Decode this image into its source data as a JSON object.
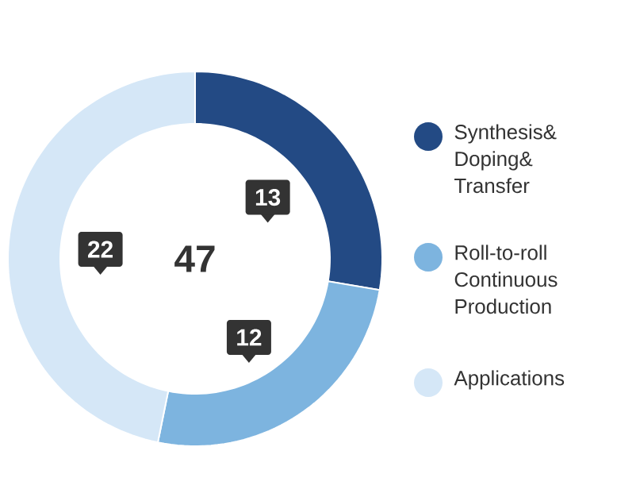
{
  "chart_data": {
    "type": "donut",
    "categories": [
      "Synthesis& Doping& Transfer",
      "Roll-to-roll Continuous Production",
      "Applications"
    ],
    "values": [
      13,
      12,
      22
    ],
    "colors": [
      "#234a84",
      "#7db4df",
      "#d5e7f7"
    ],
    "data_labels": true,
    "legend": "right",
    "annotations": [
      "47"
    ]
  }
}
